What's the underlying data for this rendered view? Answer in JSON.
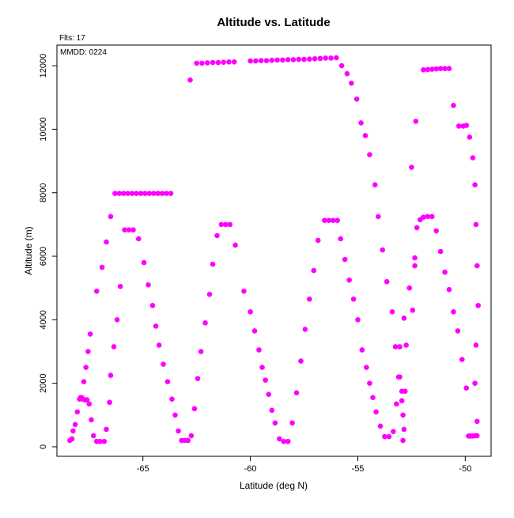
{
  "chart_data": {
    "type": "scatter",
    "title": "Altitude vs. Latitude",
    "annotations": {
      "flights": "Flts: 17",
      "mmdd": "MMDD: 0224"
    },
    "xlabel": "Latitude (deg N)",
    "ylabel": "Altitude (m)",
    "xlim": [
      -69.0,
      -48.8
    ],
    "ylim": [
      -300,
      12650
    ],
    "xticks": [
      -65,
      -60,
      -55,
      -50
    ],
    "xtick_labels": [
      "-65",
      "-60",
      "-55",
      "-50"
    ],
    "yticks": [
      0,
      2000,
      4000,
      6000,
      8000,
      10000,
      12000
    ],
    "ytick_labels": [
      "0",
      "2000",
      "4000",
      "6000",
      "8000",
      "10000",
      "12000"
    ],
    "grid": false,
    "legend": "none",
    "point_color": "#ff00ff",
    "series": [
      {
        "points": [
          [
            -68.4,
            200
          ],
          [
            -68.3,
            250
          ],
          [
            -68.25,
            500
          ],
          [
            -68.15,
            700
          ],
          [
            -68.05,
            1100
          ],
          [
            -67.95,
            1500
          ],
          [
            -67.9,
            1550
          ],
          [
            -67.8,
            1500
          ],
          [
            -67.7,
            1480
          ],
          [
            -67.6,
            1480
          ],
          [
            -67.5,
            1350
          ],
          [
            -67.85,
            1550
          ],
          [
            -67.75,
            2050
          ],
          [
            -67.65,
            2500
          ],
          [
            -67.55,
            3000
          ],
          [
            -67.45,
            3550
          ],
          [
            -67.4,
            850
          ],
          [
            -67.3,
            350
          ],
          [
            -67.15,
            170
          ],
          [
            -67.0,
            170
          ],
          [
            -66.8,
            170
          ],
          [
            -66.7,
            550
          ],
          [
            -66.55,
            1400
          ],
          [
            -66.5,
            2250
          ],
          [
            -66.35,
            3150
          ],
          [
            -66.2,
            4000
          ],
          [
            -66.05,
            5050
          ],
          [
            -66.9,
            5650
          ],
          [
            -66.7,
            6450
          ],
          [
            -66.5,
            7250
          ],
          [
            -67.15,
            4900
          ],
          [
            -66.3,
            7980
          ],
          [
            -66.1,
            7980
          ],
          [
            -65.9,
            7980
          ],
          [
            -65.7,
            7980
          ],
          [
            -65.5,
            7980
          ],
          [
            -65.3,
            7980
          ],
          [
            -65.1,
            7980
          ],
          [
            -64.9,
            7980
          ],
          [
            -64.7,
            7980
          ],
          [
            -64.5,
            7980
          ],
          [
            -64.3,
            7980
          ],
          [
            -64.1,
            7980
          ],
          [
            -63.9,
            7980
          ],
          [
            -63.7,
            7980
          ],
          [
            -65.85,
            6830
          ],
          [
            -65.65,
            6830
          ],
          [
            -65.45,
            6830
          ],
          [
            -65.2,
            6550
          ],
          [
            -64.95,
            5800
          ],
          [
            -64.75,
            5100
          ],
          [
            -64.55,
            4450
          ],
          [
            -64.4,
            3800
          ],
          [
            -64.25,
            3200
          ],
          [
            -64.05,
            2600
          ],
          [
            -63.85,
            2050
          ],
          [
            -63.65,
            1500
          ],
          [
            -63.5,
            1000
          ],
          [
            -63.35,
            500
          ],
          [
            -63.2,
            200
          ],
          [
            -63.05,
            200
          ],
          [
            -62.9,
            200
          ],
          [
            -62.75,
            350
          ],
          [
            -62.6,
            1200
          ],
          [
            -62.45,
            2150
          ],
          [
            -62.3,
            3000
          ],
          [
            -62.1,
            3900
          ],
          [
            -61.9,
            4800
          ],
          [
            -61.75,
            5750
          ],
          [
            -61.55,
            6650
          ],
          [
            -61.35,
            7000
          ],
          [
            -61.15,
            7000
          ],
          [
            -60.95,
            7000
          ],
          [
            -60.7,
            6350
          ],
          [
            -62.8,
            11550
          ],
          [
            -62.5,
            12080
          ],
          [
            -62.25,
            12080
          ],
          [
            -62.0,
            12090
          ],
          [
            -61.75,
            12100
          ],
          [
            -61.5,
            12100
          ],
          [
            -61.25,
            12110
          ],
          [
            -61.0,
            12120
          ],
          [
            -60.75,
            12120
          ],
          [
            -60.0,
            12150
          ],
          [
            -59.75,
            12150
          ],
          [
            -59.5,
            12160
          ],
          [
            -59.25,
            12160
          ],
          [
            -59.0,
            12170
          ],
          [
            -58.75,
            12180
          ],
          [
            -58.5,
            12180
          ],
          [
            -58.25,
            12190
          ],
          [
            -58.0,
            12190
          ],
          [
            -57.75,
            12200
          ],
          [
            -57.5,
            12200
          ],
          [
            -57.25,
            12210
          ],
          [
            -57.0,
            12220
          ],
          [
            -56.75,
            12230
          ],
          [
            -56.5,
            12240
          ],
          [
            -56.25,
            12240
          ],
          [
            -56.0,
            12250
          ],
          [
            -55.75,
            12000
          ],
          [
            -55.5,
            11750
          ],
          [
            -55.3,
            11450
          ],
          [
            -55.05,
            10950
          ],
          [
            -54.85,
            10200
          ],
          [
            -54.65,
            9800
          ],
          [
            -54.45,
            9200
          ],
          [
            -54.2,
            8250
          ],
          [
            -54.05,
            7250
          ],
          [
            -53.85,
            6200
          ],
          [
            -53.65,
            5200
          ],
          [
            -53.4,
            4250
          ],
          [
            -53.25,
            3150
          ],
          [
            -53.05,
            2200
          ],
          [
            -52.95,
            1450
          ],
          [
            -52.9,
            1000
          ],
          [
            -52.85,
            550
          ],
          [
            -52.9,
            200
          ],
          [
            -60.3,
            4900
          ],
          [
            -60.0,
            4250
          ],
          [
            -59.8,
            3650
          ],
          [
            -59.6,
            3050
          ],
          [
            -59.45,
            2500
          ],
          [
            -59.3,
            2100
          ],
          [
            -59.15,
            1650
          ],
          [
            -59.0,
            1150
          ],
          [
            -58.85,
            750
          ],
          [
            -58.65,
            250
          ],
          [
            -58.45,
            170
          ],
          [
            -58.25,
            170
          ],
          [
            -58.05,
            750
          ],
          [
            -57.85,
            1700
          ],
          [
            -57.65,
            2700
          ],
          [
            -57.45,
            3700
          ],
          [
            -57.25,
            4650
          ],
          [
            -57.05,
            5550
          ],
          [
            -56.85,
            6500
          ],
          [
            -56.55,
            7130
          ],
          [
            -56.35,
            7130
          ],
          [
            -56.15,
            7130
          ],
          [
            -55.95,
            7130
          ],
          [
            -55.8,
            6550
          ],
          [
            -55.6,
            5900
          ],
          [
            -55.4,
            5250
          ],
          [
            -55.2,
            4650
          ],
          [
            -55.0,
            4000
          ],
          [
            -54.8,
            3050
          ],
          [
            -54.6,
            2500
          ],
          [
            -54.45,
            2000
          ],
          [
            -54.3,
            1550
          ],
          [
            -54.15,
            1100
          ],
          [
            -53.95,
            650
          ],
          [
            -53.75,
            320
          ],
          [
            -53.55,
            320
          ],
          [
            -53.35,
            480
          ],
          [
            -53.2,
            1350
          ],
          [
            -53.1,
            2200
          ],
          [
            -52.95,
            1750
          ],
          [
            -52.8,
            1750
          ],
          [
            -53.05,
            3150
          ],
          [
            -52.85,
            4050
          ],
          [
            -52.6,
            5000
          ],
          [
            -52.35,
            5950
          ],
          [
            -52.25,
            6900
          ],
          [
            -52.1,
            7150
          ],
          [
            -51.95,
            7230
          ],
          [
            -51.75,
            7250
          ],
          [
            -51.55,
            7250
          ],
          [
            -51.35,
            6800
          ],
          [
            -51.15,
            6150
          ],
          [
            -50.95,
            5500
          ],
          [
            -50.75,
            4950
          ],
          [
            -50.55,
            4250
          ],
          [
            -50.35,
            3650
          ],
          [
            -50.15,
            2750
          ],
          [
            -49.95,
            1850
          ],
          [
            -52.35,
            5700
          ],
          [
            -52.45,
            4300
          ],
          [
            -52.75,
            3200
          ],
          [
            -52.5,
            8800
          ],
          [
            -52.3,
            10250
          ],
          [
            -51.95,
            11870
          ],
          [
            -51.75,
            11880
          ],
          [
            -51.55,
            11890
          ],
          [
            -51.35,
            11900
          ],
          [
            -51.15,
            11910
          ],
          [
            -50.95,
            11910
          ],
          [
            -50.75,
            11910
          ],
          [
            -50.55,
            10750
          ],
          [
            -50.3,
            10100
          ],
          [
            -50.1,
            10100
          ],
          [
            -49.95,
            10120
          ],
          [
            -49.8,
            9750
          ],
          [
            -49.65,
            9100
          ],
          [
            -49.55,
            8250
          ],
          [
            -49.5,
            7000
          ],
          [
            -49.45,
            5700
          ],
          [
            -49.4,
            4450
          ],
          [
            -49.5,
            3200
          ],
          [
            -49.55,
            2000
          ],
          [
            -49.45,
            800
          ],
          [
            -49.85,
            340
          ],
          [
            -49.75,
            340
          ],
          [
            -49.65,
            340
          ],
          [
            -49.55,
            350
          ],
          [
            -49.45,
            350
          ]
        ]
      }
    ]
  }
}
